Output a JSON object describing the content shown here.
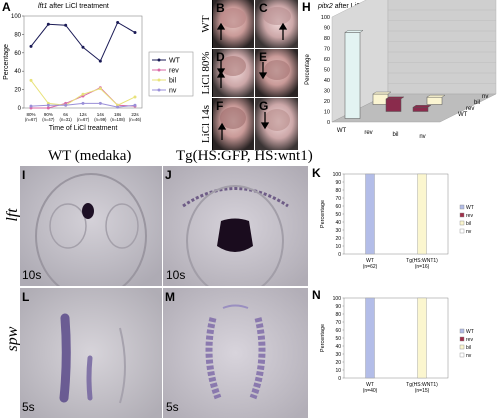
{
  "panelA": {
    "label": "A",
    "title_gene": "lft1",
    "title_rest": "after LiCl treatment",
    "ylabel": "Percentage",
    "xlabel": "Time of LiCl treatment",
    "legend": [
      "WT",
      "rev",
      "bil",
      "nv"
    ],
    "chart_data": {
      "type": "line",
      "categories": [
        "80%\n(n=67)",
        "90%\n(n=47)",
        "6s\n(n=31)",
        "12s\n(n=67)",
        "14s\n(n=99)",
        "18s\n(n=108)",
        "22s\n(n=46)"
      ],
      "category_top": [
        "80%",
        "90%",
        "6s",
        "12s",
        "14s",
        "18s",
        "22s"
      ],
      "category_bottom": [
        "(n=67)",
        "(n=47)",
        "(n=31)",
        "(n=67)",
        "(n=99)",
        "(n=108)",
        "(n=46)"
      ],
      "ylim": [
        0,
        100
      ],
      "yticks": [
        0,
        20,
        40,
        60,
        80,
        100
      ],
      "series": [
        {
          "name": "WT",
          "color": "#1a1a55",
          "values": [
            67,
            91,
            90,
            66,
            51,
            93,
            82
          ]
        },
        {
          "name": "rev",
          "color": "#d96aa6",
          "values": [
            0,
            0,
            5,
            13,
            22,
            3,
            2
          ]
        },
        {
          "name": "bil",
          "color": "#e8e27a",
          "values": [
            30,
            5,
            3,
            15,
            21,
            3,
            12
          ]
        },
        {
          "name": "nv",
          "color": "#9a8fd8",
          "values": [
            2,
            3,
            3,
            5,
            5,
            1,
            3
          ]
        }
      ]
    }
  },
  "panelsBG": {
    "labels": [
      "B",
      "C",
      "D",
      "E",
      "F",
      "G"
    ],
    "row_labels": [
      "WT",
      "LiCl 80%",
      "LiCl 14s"
    ]
  },
  "panelH": {
    "label": "H",
    "title_gene": "pitx2",
    "title_rest": "after LiCl at 14s: brain vs. LPM (n=28)",
    "ylabel": "Percentage",
    "yticks": [
      0,
      10,
      20,
      30,
      40,
      50,
      60,
      70,
      80,
      90,
      100
    ],
    "x_categories": [
      "WT",
      "rev",
      "bil",
      "nv"
    ],
    "depth_categories": [
      "WT",
      "rev",
      "bil",
      "nv"
    ],
    "chart_data": {
      "type": "bar",
      "note": "3D bar: brain pattern (x) vs LPM pattern (depth)",
      "bars": [
        {
          "x": "WT",
          "depth": "WT",
          "value": 82
        },
        {
          "x": "WT",
          "depth": "bil",
          "value": 10
        },
        {
          "x": "rev",
          "depth": "rev",
          "value": 12
        },
        {
          "x": "bil",
          "depth": "bil",
          "value": 7
        },
        {
          "x": "bil",
          "depth": "rev",
          "value": 4
        }
      ],
      "ylim": [
        0,
        100
      ]
    }
  },
  "panelsIJLM": {
    "col_heads": [
      "WT (medaka)",
      "Tg(HS:GFP, HS:wnt1)"
    ],
    "row_genes": [
      "lft",
      "spw"
    ],
    "labels": [
      "I",
      "J",
      "L",
      "M"
    ],
    "stages": [
      "10s",
      "10s",
      "5s",
      "5s"
    ]
  },
  "panelK": {
    "label": "K",
    "ylabel": "Percentage",
    "yticks": [
      0,
      10,
      20,
      30,
      40,
      50,
      60,
      70,
      80,
      90,
      100
    ],
    "legend": [
      "WT",
      "rev",
      "bil",
      "nv"
    ],
    "chart_data": {
      "type": "bar",
      "stacked": true,
      "categories": [
        "WT\n(n=62)",
        "Tg(HS:WNT1)\n(n=16)"
      ],
      "cat_top": [
        "WT",
        "Tg(HS:WNT1)"
      ],
      "cat_bottom": [
        "(n=62)",
        "(n=16)"
      ],
      "series": [
        {
          "name": "WT",
          "color": "#b3bde8",
          "values": [
            100,
            0
          ]
        },
        {
          "name": "rev",
          "color": "#a0304a",
          "values": [
            0,
            0
          ]
        },
        {
          "name": "bil",
          "color": "#fbf6cf",
          "values": [
            0,
            100
          ]
        },
        {
          "name": "nv",
          "color": "#ffffff",
          "values": [
            0,
            0
          ]
        }
      ],
      "ylim": [
        0,
        100
      ]
    }
  },
  "panelN": {
    "label": "N",
    "ylabel": "Percentage",
    "yticks": [
      0,
      10,
      20,
      30,
      40,
      50,
      60,
      70,
      80,
      90,
      100
    ],
    "legend": [
      "WT",
      "rev",
      "bil",
      "nv"
    ],
    "chart_data": {
      "type": "bar",
      "stacked": true,
      "categories": [
        "WT\n(n=40)",
        "Tg(HS:WNT1)\n(n=15)"
      ],
      "cat_top": [
        "WT",
        "Tg(HS:WNT1)"
      ],
      "cat_bottom": [
        "(n=40)",
        "(n=15)"
      ],
      "series": [
        {
          "name": "WT",
          "color": "#b3bde8",
          "values": [
            100,
            0
          ]
        },
        {
          "name": "rev",
          "color": "#a0304a",
          "values": [
            0,
            0
          ]
        },
        {
          "name": "bil",
          "color": "#fbf6cf",
          "values": [
            0,
            100
          ]
        },
        {
          "name": "nv",
          "color": "#ffffff",
          "values": [
            0,
            0
          ]
        }
      ],
      "ylim": [
        0,
        100
      ]
    }
  }
}
